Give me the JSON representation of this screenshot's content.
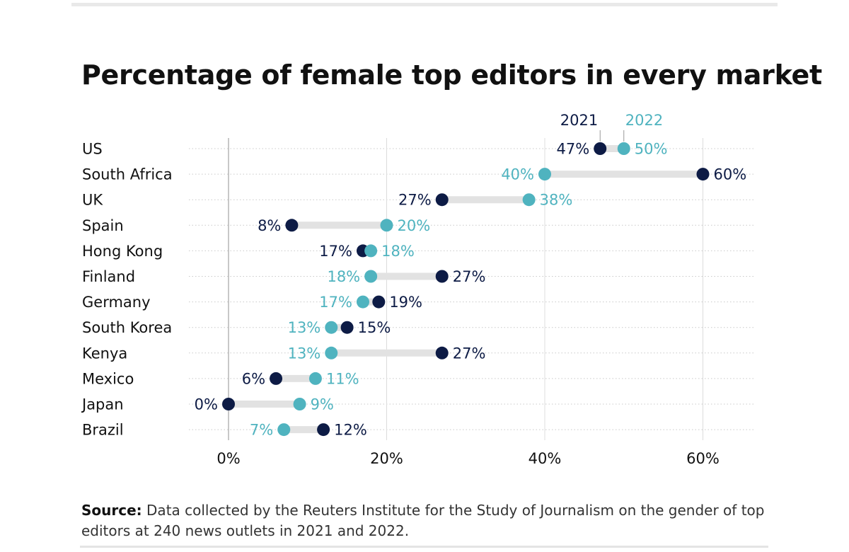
{
  "title": "Percentage of female top editors in every market",
  "chart_data": {
    "type": "dumbbell",
    "title": "Percentage of female top editors in every market",
    "xlabel": "",
    "ylabel": "",
    "xlim": [
      -5,
      65
    ],
    "x_ticks": [
      0,
      20,
      40,
      60
    ],
    "x_tick_labels": [
      "0%",
      "20%",
      "40%",
      "60%"
    ],
    "legend": [
      {
        "name": "2021",
        "color": "#0d1b45"
      },
      {
        "name": "2022",
        "color": "#4fb3bf"
      }
    ],
    "legend_placement": "top, above first row",
    "categories": [
      "US",
      "South Africa",
      "UK",
      "Spain",
      "Hong Kong",
      "Finland",
      "Germany",
      "South Korea",
      "Kenya",
      "Mexico",
      "Japan",
      "Brazil"
    ],
    "series": [
      {
        "name": "2021",
        "values": [
          47,
          60,
          27,
          8,
          17,
          27,
          19,
          15,
          27,
          6,
          0,
          12
        ],
        "labels": [
          "47%",
          "60%",
          "27%",
          "8%",
          "17%",
          "27%",
          "19%",
          "15%",
          "27%",
          "6%",
          "0%",
          "12%"
        ]
      },
      {
        "name": "2022",
        "values": [
          50,
          40,
          38,
          20,
          18,
          18,
          17,
          13,
          13,
          11,
          9,
          7
        ],
        "labels": [
          "50%",
          "40%",
          "38%",
          "20%",
          "18%",
          "18%",
          "17%",
          "13%",
          "13%",
          "11%",
          "9%",
          "7%"
        ]
      }
    ],
    "grid": true
  },
  "source": {
    "label": "Source:",
    "text": "Data collected by the Reuters Institute for the Study of Journalism on the gender of top editors at 240 news outlets in 2021 and 2022."
  }
}
